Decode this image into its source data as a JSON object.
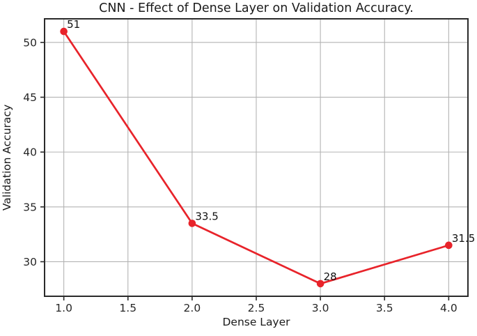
{
  "chart_data": {
    "type": "line",
    "title": "CNN - Effect of Dense Layer on Validation Accuracy.",
    "xlabel": "Dense Layer",
    "ylabel": "Validation Accuracy",
    "x": [
      1,
      2,
      3,
      4
    ],
    "y": [
      51,
      33.5,
      28,
      31.5
    ],
    "point_labels": [
      "51",
      "33.5",
      "28",
      "31.5"
    ],
    "xlim": [
      0.85,
      4.15
    ],
    "ylim": [
      26.85,
      52.15
    ],
    "xticks": [
      1.0,
      1.5,
      2.0,
      2.5,
      3.0,
      3.5,
      4.0
    ],
    "xtick_labels": [
      "1.0",
      "1.5",
      "2.0",
      "2.5",
      "3.0",
      "3.5",
      "4.0"
    ],
    "yticks": [
      30,
      35,
      40,
      45,
      50
    ],
    "ytick_labels": [
      "30",
      "35",
      "40",
      "45",
      "50"
    ],
    "grid": true,
    "legend_position": "none",
    "line_color": "#e8232a",
    "marker_color": "#e8232a",
    "grid_color": "#b3b3b3",
    "spine_color": "#2a2a2a",
    "background_color": "#ffffff"
  }
}
